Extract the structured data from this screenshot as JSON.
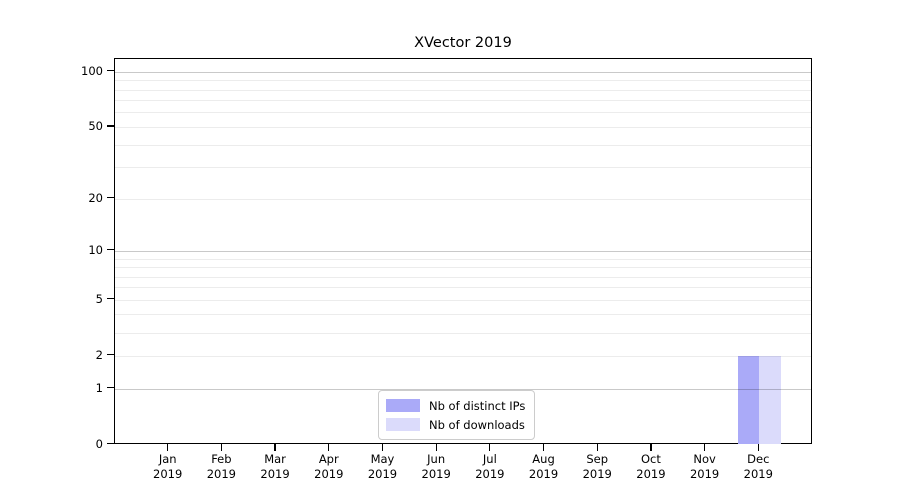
{
  "chart_data": {
    "type": "bar",
    "title": "XVector 2019",
    "categories": [
      "Jan",
      "Feb",
      "Mar",
      "Apr",
      "May",
      "Jun",
      "Jul",
      "Aug",
      "Sep",
      "Oct",
      "Nov",
      "Dec"
    ],
    "year_label": "2019",
    "series": [
      {
        "name": "Nb of distinct IPs",
        "color": "#aaaaf8",
        "values": [
          0,
          0,
          0,
          0,
          0,
          0,
          0,
          0,
          0,
          0,
          0,
          2
        ]
      },
      {
        "name": "Nb of downloads",
        "color": "#dbdbfb",
        "values": [
          0,
          0,
          0,
          0,
          0,
          0,
          0,
          0,
          0,
          0,
          0,
          2
        ]
      }
    ],
    "yscale": "log1p",
    "ylim": [
      0,
      115
    ],
    "ytick_values": [
      100,
      50,
      20,
      10,
      5,
      2,
      1,
      0
    ],
    "ytick_labels": [
      "100",
      "50",
      "20",
      "10",
      "5",
      "2",
      "1",
      "0"
    ],
    "major_grid_values": [
      1,
      10,
      100
    ],
    "minor_grid_values": [
      2,
      3,
      4,
      5,
      6,
      7,
      8,
      9,
      20,
      30,
      40,
      50,
      60,
      70,
      80,
      90
    ],
    "grid": "both",
    "legend_position": "lower center"
  }
}
